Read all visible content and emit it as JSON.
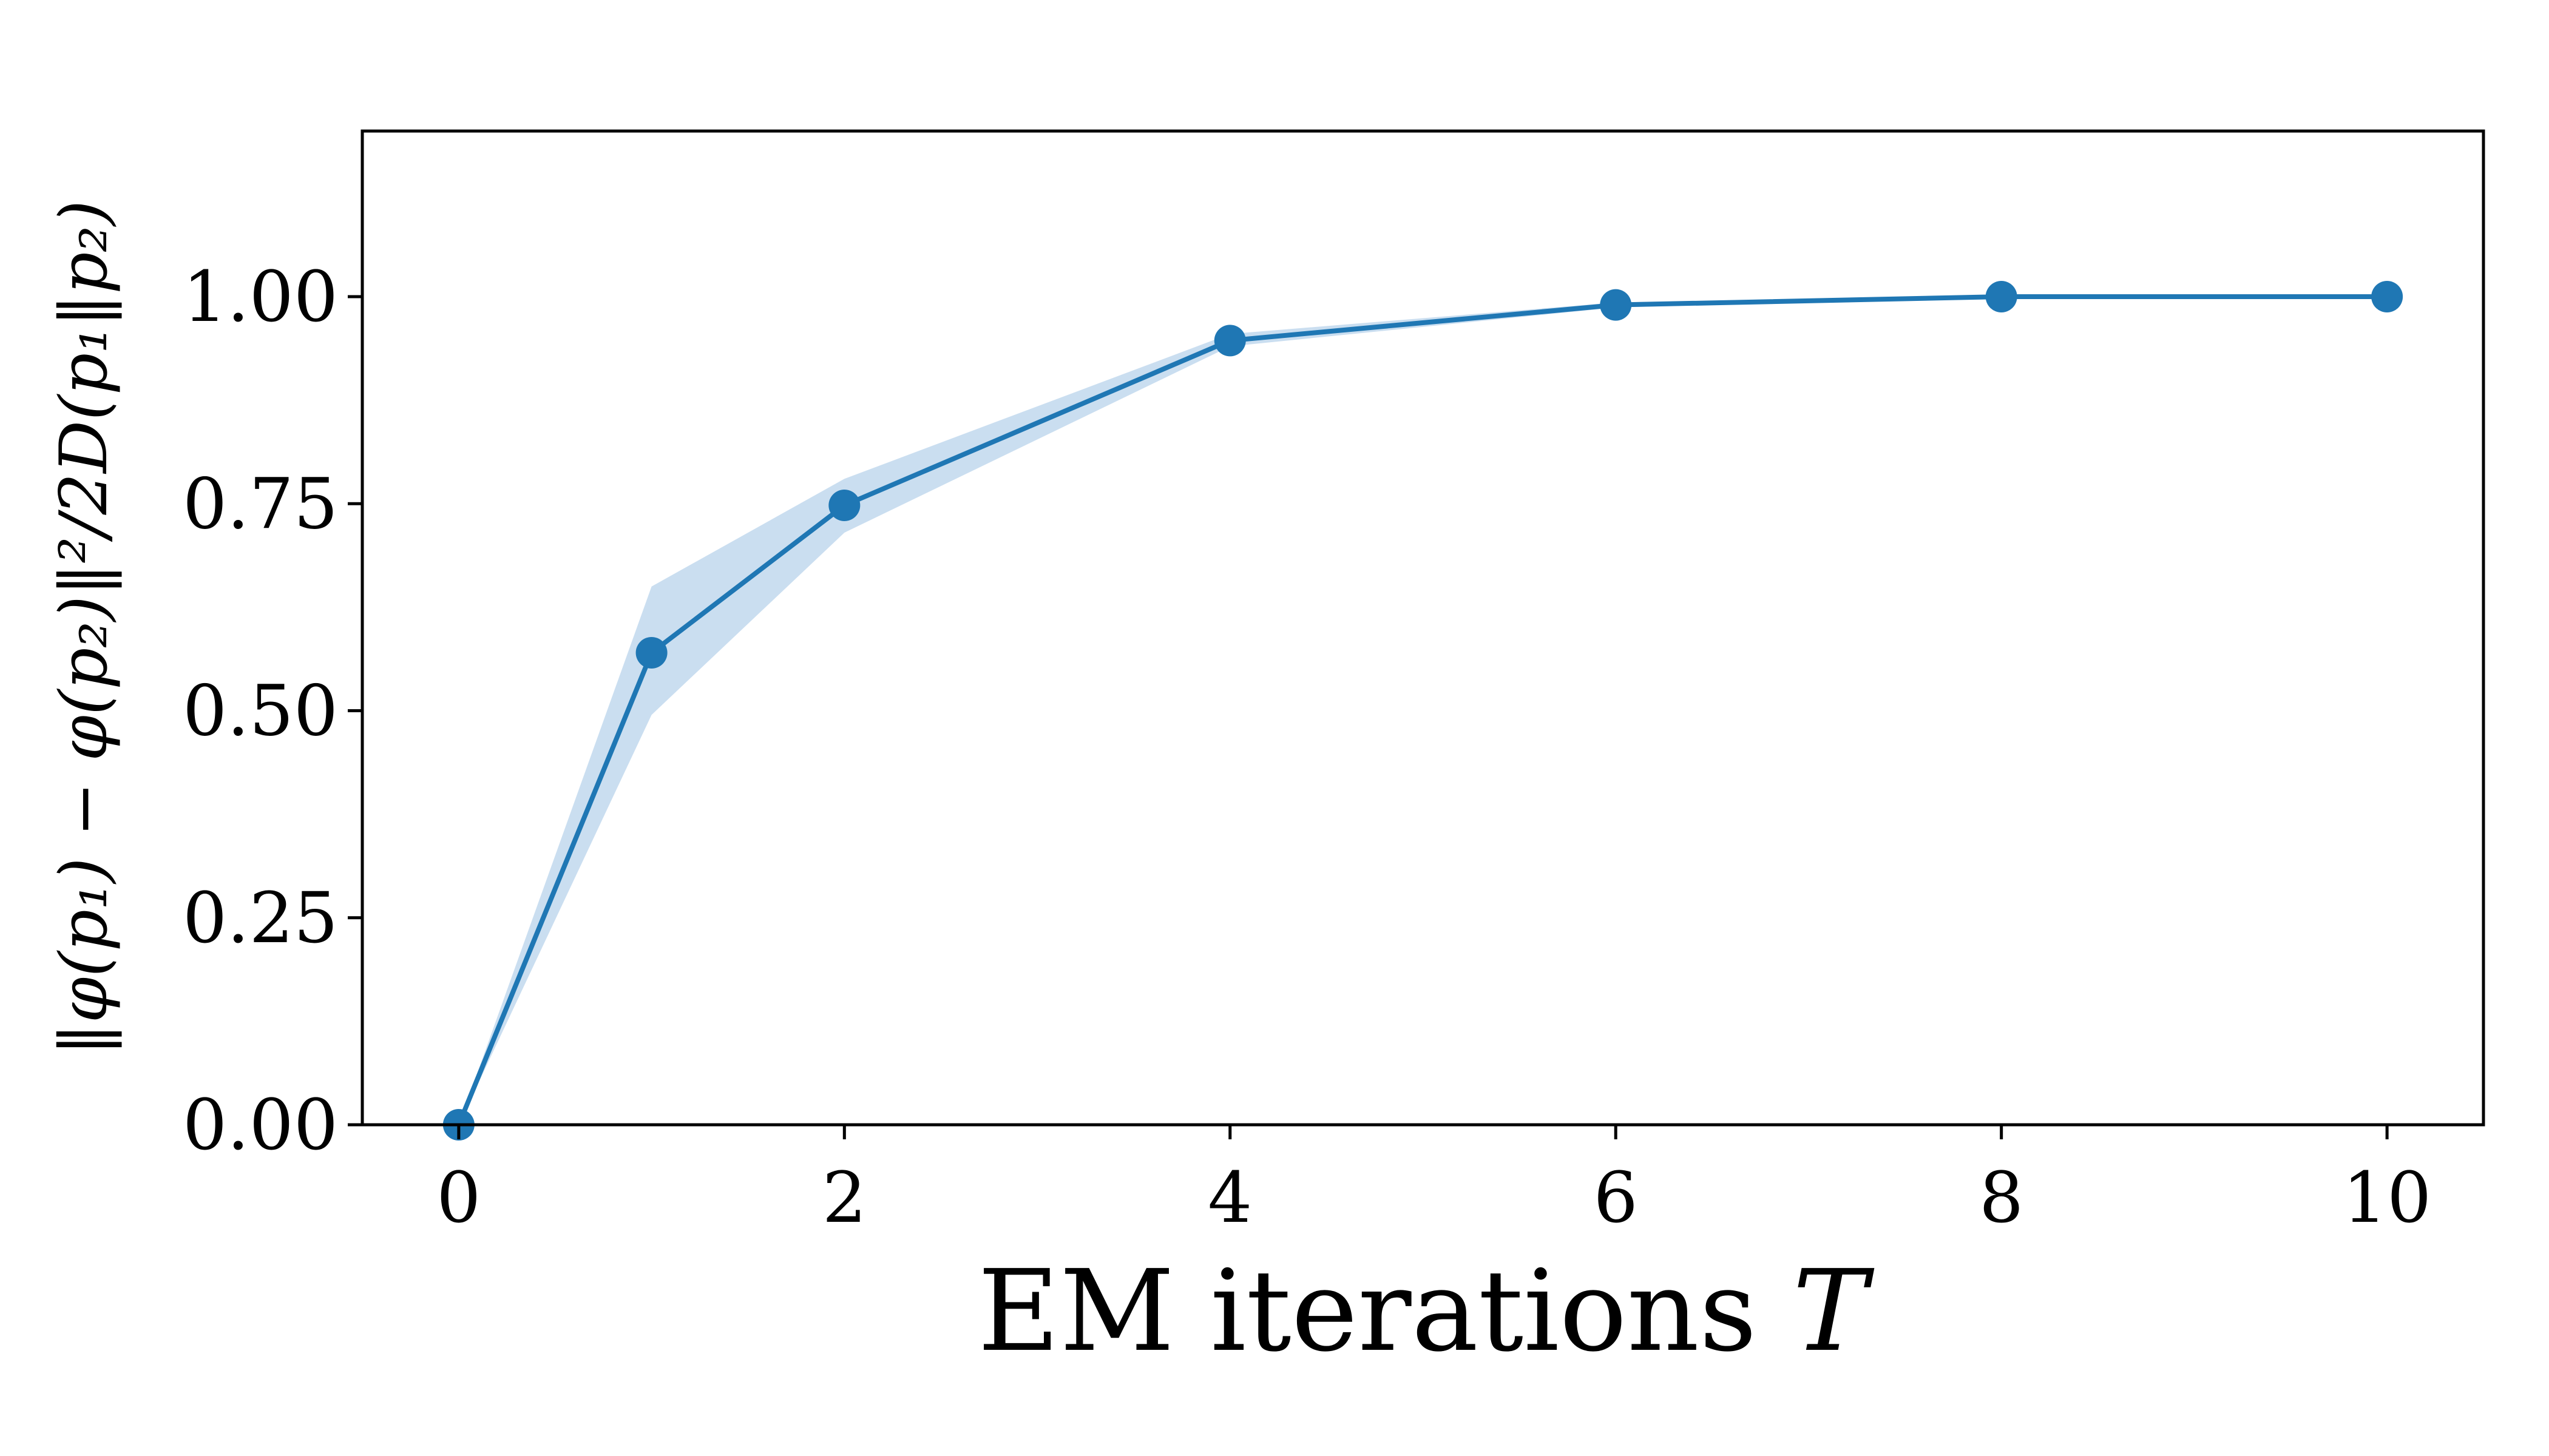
{
  "chart_data": {
    "type": "line",
    "title": "",
    "xlabel": "EM iterations",
    "xlabel_var": "T",
    "ylabel": "‖φ(p₁) − φ(p₂)‖²/2D(p₁‖p₂)",
    "x": [
      0,
      1,
      2,
      4,
      6,
      8,
      10
    ],
    "series": [
      {
        "values": [
          0.0,
          0.57,
          0.748,
          0.947,
          0.99,
          1.0,
          1.0
        ],
        "lower": [
          0.0,
          0.495,
          0.715,
          0.94,
          0.987,
          0.999,
          1.0
        ],
        "upper": [
          0.0,
          0.65,
          0.78,
          0.955,
          0.993,
          1.001,
          1.0
        ],
        "color": "#1f77b4",
        "band_color": "#a6c8e6"
      }
    ],
    "xlim": [
      -0.5,
      10.5
    ],
    "ylim": [
      0.0,
      1.2
    ],
    "xticks": [
      0,
      2,
      4,
      6,
      8,
      10
    ],
    "xtick_labels": [
      "0",
      "2",
      "4",
      "6",
      "8",
      "10"
    ],
    "yticks": [
      0.0,
      0.25,
      0.5,
      0.75,
      1.0
    ],
    "ytick_labels": [
      "0.00",
      "0.25",
      "0.50",
      "0.75",
      "1.00"
    ],
    "grid": false,
    "legend": "none"
  }
}
